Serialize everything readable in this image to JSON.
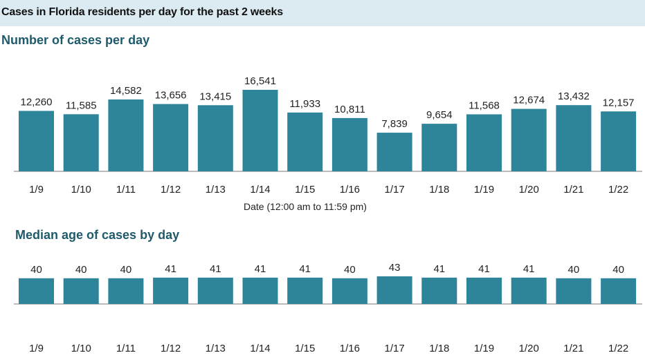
{
  "banner": {
    "title": "Cases in Florida residents per day for the past 2 weeks"
  },
  "colors": {
    "bar": "#2e8499",
    "axis": "#777777",
    "banner_bg": "#dbebf1",
    "section_title": "#1f5a6b"
  },
  "chart_data": [
    {
      "type": "bar",
      "title": "Number of cases per day",
      "xlabel": "Date (12:00 am to 11:59 pm)",
      "ylabel": "",
      "categories": [
        "1/9",
        "1/10",
        "1/11",
        "1/12",
        "1/13",
        "1/14",
        "1/15",
        "1/16",
        "1/17",
        "1/18",
        "1/19",
        "1/20",
        "1/21",
        "1/22"
      ],
      "values": [
        12260,
        11585,
        14582,
        13656,
        13415,
        16541,
        11933,
        10811,
        7839,
        9654,
        11568,
        12674,
        13432,
        12157
      ],
      "labels": [
        "12,260",
        "11,585",
        "14,582",
        "13,656",
        "13,415",
        "16,541",
        "11,933",
        "10,811",
        "7,839",
        "9,654",
        "11,568",
        "12,674",
        "13,432",
        "12,157"
      ],
      "ylim": [
        0,
        16541
      ],
      "grid": false,
      "legend": "none"
    },
    {
      "type": "bar",
      "title": "Median age of cases by day",
      "xlabel": "",
      "ylabel": "",
      "categories": [
        "1/9",
        "1/10",
        "1/11",
        "1/12",
        "1/13",
        "1/14",
        "1/15",
        "1/16",
        "1/17",
        "1/18",
        "1/19",
        "1/20",
        "1/21",
        "1/22"
      ],
      "values": [
        40,
        40,
        40,
        41,
        41,
        41,
        41,
        40,
        43,
        41,
        41,
        41,
        40,
        40
      ],
      "labels": [
        "40",
        "40",
        "40",
        "41",
        "41",
        "41",
        "41",
        "40",
        "43",
        "41",
        "41",
        "41",
        "40",
        "40"
      ],
      "ylim": [
        0,
        43
      ],
      "grid": false,
      "legend": "none"
    }
  ]
}
